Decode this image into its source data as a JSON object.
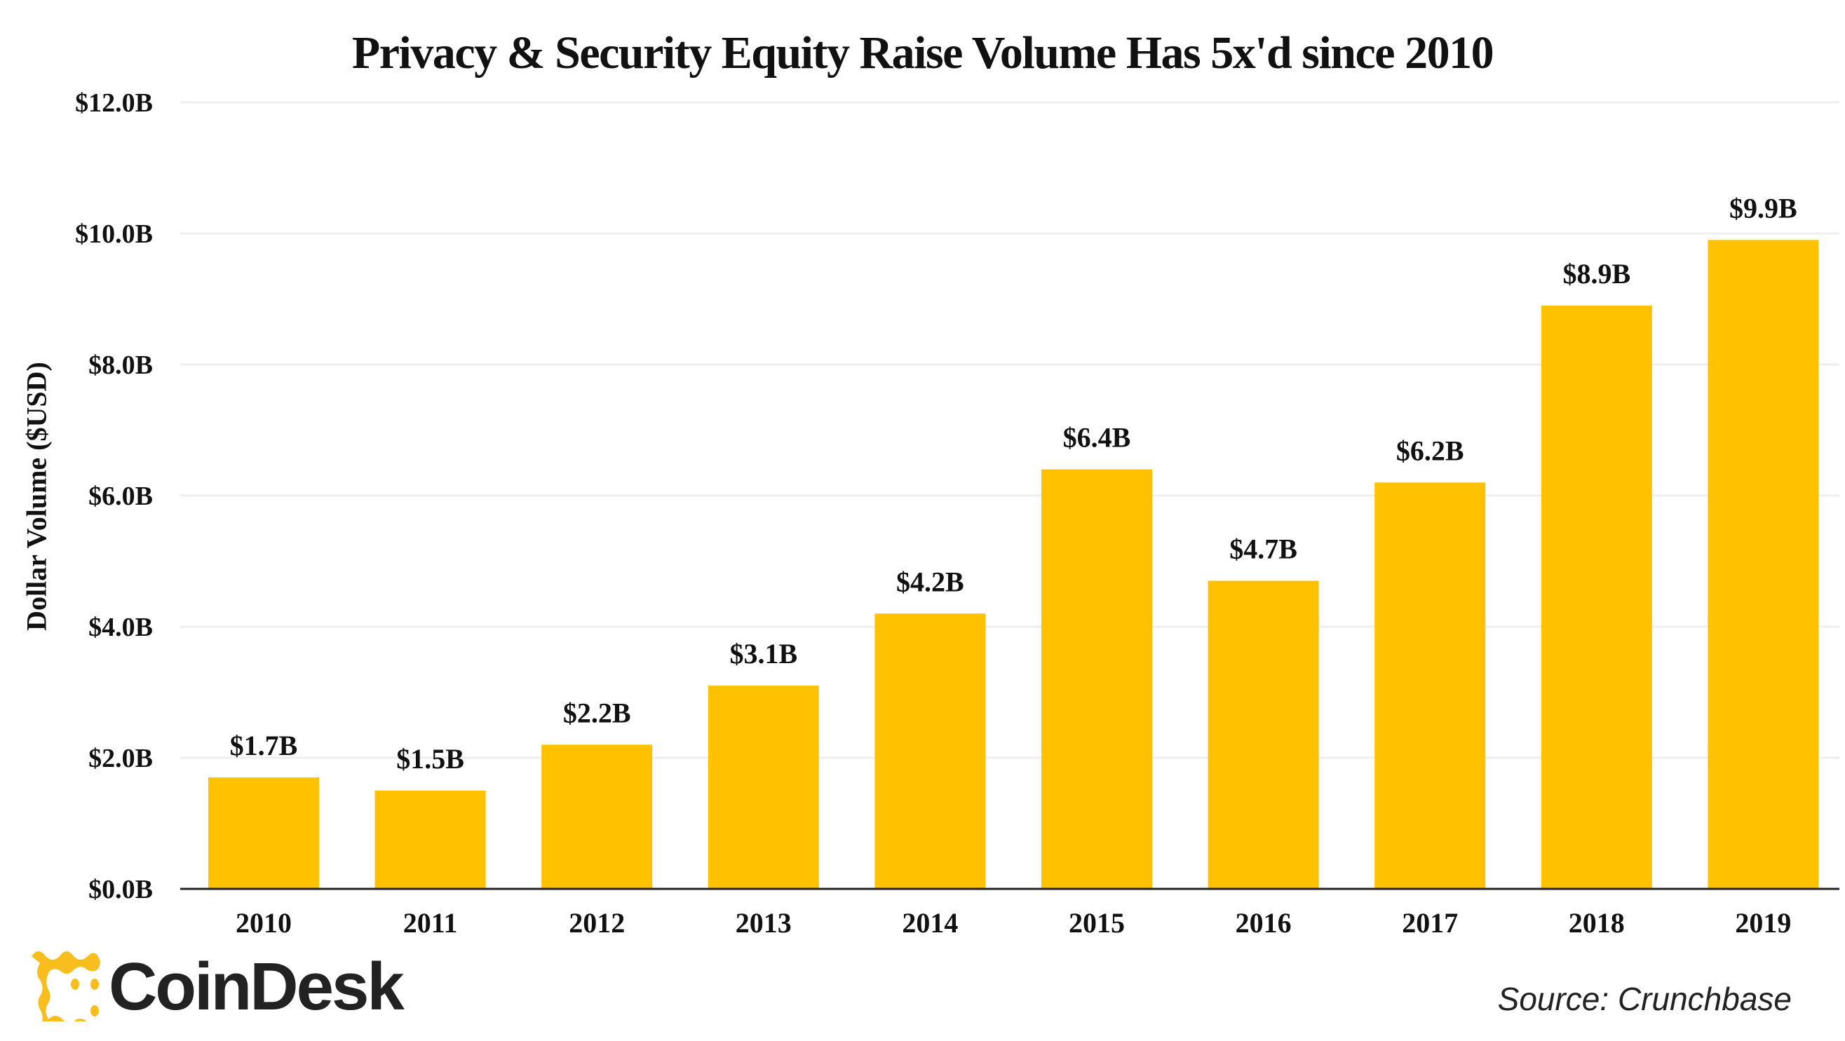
{
  "chart_data": {
    "type": "bar",
    "title": "Privacy & Security Equity Raise Volume Has 5x'd since 2010",
    "xlabel": "",
    "ylabel": "Dollar Volume ($USD)",
    "categories": [
      "2010",
      "2011",
      "2012",
      "2013",
      "2014",
      "2015",
      "2016",
      "2017",
      "2018",
      "2019"
    ],
    "values": [
      1.7,
      1.5,
      2.2,
      3.1,
      4.2,
      6.4,
      4.7,
      6.2,
      8.9,
      9.9
    ],
    "data_labels": [
      "$1.7B",
      "$1.5B",
      "$2.2B",
      "$3.1B",
      "$4.2B",
      "$6.4B",
      "$4.7B",
      "$6.2B",
      "$8.9B",
      "$9.9B"
    ],
    "ylim": [
      0,
      12
    ],
    "yticks": [
      0,
      2,
      4,
      6,
      8,
      10,
      12
    ],
    "ytick_labels": [
      "$0.0B",
      "$2.0B",
      "$4.0B",
      "$6.0B",
      "$8.0B",
      "$10.0B",
      "$12.0B"
    ],
    "grid": true,
    "bar_color": "#FFC100"
  },
  "source": "Source: Crunchbase",
  "logo": {
    "text": "CoinDesk",
    "color": "#F7BE1E"
  }
}
